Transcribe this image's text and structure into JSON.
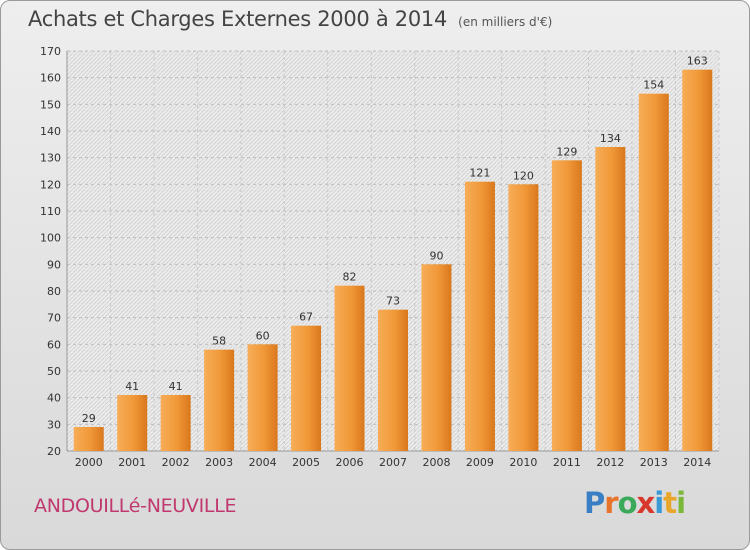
{
  "title": "Achats et Charges Externes 2000 à 2014",
  "subtitle": "(en milliers d'€)",
  "commune": "ANDOUILLé-NEUVILLE",
  "logo": {
    "letters": [
      "P",
      "r",
      "o",
      "x",
      "i",
      "t",
      "i"
    ],
    "colors": [
      "#3a7fc4",
      "#e8732a",
      "#3aaa5a",
      "#d8372c",
      "#3a9ad8",
      "#e8a62a",
      "#7ab83a"
    ]
  },
  "colors": {
    "bar": "#f09838",
    "bar_dark": "#d9781d",
    "bar_light": "#f7ad57"
  },
  "chart_data": {
    "type": "bar",
    "categories": [
      "2000",
      "2001",
      "2002",
      "2003",
      "2004",
      "2005",
      "2006",
      "2007",
      "2008",
      "2009",
      "2010",
      "2011",
      "2012",
      "2013",
      "2014"
    ],
    "values": [
      29,
      41,
      41,
      58,
      60,
      67,
      82,
      73,
      90,
      121,
      120,
      129,
      134,
      154,
      163
    ],
    "ylim": [
      20,
      170
    ],
    "yticks": [
      20,
      30,
      40,
      50,
      60,
      70,
      80,
      90,
      100,
      110,
      120,
      130,
      140,
      150,
      160,
      170
    ],
    "grid": true,
    "legend": "none"
  }
}
